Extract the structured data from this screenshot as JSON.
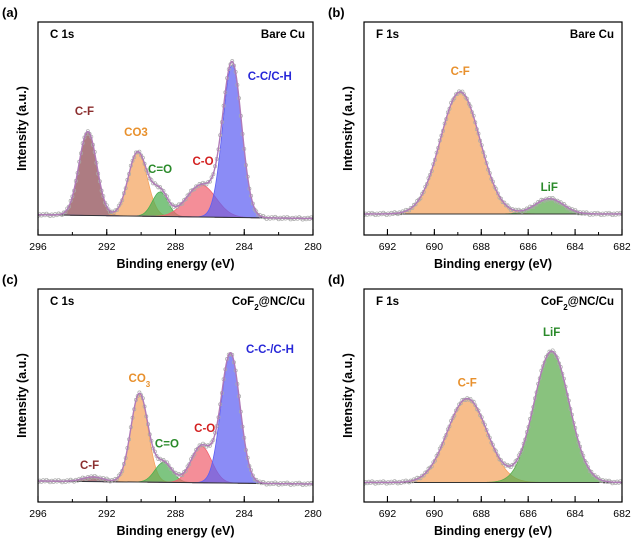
{
  "chart_data": [
    {
      "type": "area",
      "panel": "(a)",
      "core_level": "C 1s",
      "sample": "Bare Cu",
      "xlabel": "Binding energy (eV)",
      "ylabel": "Intensity (a.u.)",
      "x_reversed": true,
      "xlim": [
        296,
        280
      ],
      "xticks": [
        296,
        292,
        288,
        284,
        280
      ],
      "ylim": [
        0,
        1.2
      ],
      "baseline": [
        0.015,
        -0.01
      ],
      "peaks": [
        {
          "name": "C-F",
          "center": 293.1,
          "height": 0.55,
          "sigma": 0.52,
          "color": "#8e4a52"
        },
        {
          "name": "CO3",
          "center": 290.2,
          "height": 0.42,
          "sigma": 0.55,
          "color": "#f4a35e"
        },
        {
          "name": "C=O",
          "center": 288.9,
          "height": 0.16,
          "sigma": 0.45,
          "color": "#4caf50"
        },
        {
          "name": "C-O",
          "center": 286.5,
          "height": 0.21,
          "sigma": 0.85,
          "color": "#f06270"
        },
        {
          "name": "C-C/C-H",
          "center": 284.7,
          "height": 1.0,
          "sigma": 0.55,
          "color": "#5e5ff3"
        }
      ]
    },
    {
      "type": "area",
      "panel": "(b)",
      "core_level": "F 1s",
      "sample": "Bare Cu",
      "xlabel": "Binding energy (eV)",
      "ylabel": "Intensity (a.u.)",
      "x_reversed": true,
      "xlim": [
        693,
        682
      ],
      "xticks": [
        692,
        690,
        688,
        686,
        684,
        682
      ],
      "ylim": [
        0,
        1.2
      ],
      "baseline": [
        0.02,
        0.02
      ],
      "peaks": [
        {
          "name": "C-F",
          "center": 688.9,
          "height": 0.8,
          "sigma": 0.85,
          "color": "#f4a35e"
        },
        {
          "name": "LiF",
          "center": 685.1,
          "height": 0.1,
          "sigma": 0.6,
          "color": "#5cab4c"
        }
      ]
    },
    {
      "type": "area",
      "panel": "(c)",
      "core_level": "C 1s",
      "sample": "CoF2@NC/Cu",
      "xlabel": "Binding energy (eV)",
      "ylabel": "Intensity (a.u.)",
      "x_reversed": true,
      "xlim": [
        296,
        280
      ],
      "xticks": [
        296,
        292,
        288,
        284,
        280
      ],
      "ylim": [
        0,
        1.2
      ],
      "baseline": [
        0.02,
        0.0
      ],
      "peaks": [
        {
          "name": "C-F",
          "center": 292.8,
          "height": 0.03,
          "sigma": 0.6,
          "color": "#8e4a52"
        },
        {
          "name": "CO3",
          "center": 290.1,
          "height": 0.58,
          "sigma": 0.5,
          "color": "#f4a35e"
        },
        {
          "name": "C=O",
          "center": 288.7,
          "height": 0.13,
          "sigma": 0.5,
          "color": "#4caf50"
        },
        {
          "name": "C-O",
          "center": 286.5,
          "height": 0.24,
          "sigma": 0.6,
          "color": "#f06270"
        },
        {
          "name": "C-C-/C-H",
          "center": 284.8,
          "height": 0.85,
          "sigma": 0.55,
          "color": "#5e5ff3"
        }
      ]
    },
    {
      "type": "area",
      "panel": "(d)",
      "core_level": "F 1s",
      "sample": "CoF2@NC/Cu",
      "xlabel": "Binding energy (eV)",
      "ylabel": "Intensity (a.u.)",
      "x_reversed": true,
      "xlim": [
        693,
        682
      ],
      "xticks": [
        692,
        690,
        688,
        686,
        684,
        682
      ],
      "ylim": [
        0,
        1.2
      ],
      "baseline": [
        0.01,
        0.01
      ],
      "peaks": [
        {
          "name": "C-F",
          "center": 688.6,
          "height": 0.55,
          "sigma": 0.85,
          "color": "#f4a35e"
        },
        {
          "name": "LiF",
          "center": 685.0,
          "height": 0.86,
          "sigma": 0.75,
          "color": "#5cab4c"
        }
      ]
    }
  ]
}
